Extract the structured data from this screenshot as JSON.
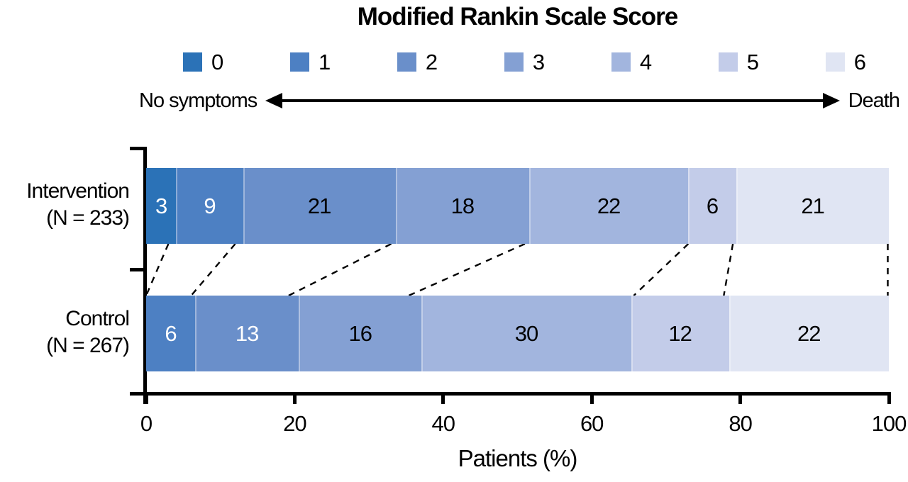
{
  "figure_title": "Modified Rankin Scale Score",
  "chart_data": {
    "type": "bar",
    "orientation": "horizontal",
    "stacked": true,
    "title": "Modified Rankin Scale Score",
    "xlabel": "Patients (%)",
    "xlim": [
      0,
      100
    ],
    "x_ticks": [
      "0",
      "20",
      "40",
      "60",
      "80",
      "100"
    ],
    "grid": false,
    "legend": {
      "position": "top",
      "entries": [
        {
          "label": "0",
          "color": "#2b72b7"
        },
        {
          "label": "1",
          "color": "#4d80c3"
        },
        {
          "label": "2",
          "color": "#6a8fca"
        },
        {
          "label": "3",
          "color": "#84a0d3"
        },
        {
          "label": "4",
          "color": "#a2b5de"
        },
        {
          "label": "5",
          "color": "#c3cce9"
        },
        {
          "label": "6",
          "color": "#e0e5f3"
        }
      ]
    },
    "scale_arrow": {
      "left_label": "No symptoms",
      "right_label": "Death"
    },
    "categories": [
      {
        "name": "Intervention",
        "n_label": "(N = 233)"
      },
      {
        "name": "Control",
        "n_label": "(N = 267)"
      }
    ],
    "series": [
      {
        "category": "Intervention",
        "segments": [
          {
            "score": 0,
            "value": 3,
            "color": "#2b72b7",
            "text_color": "#ffffff"
          },
          {
            "score": 1,
            "value": 9,
            "color": "#4d80c3",
            "text_color": "#ffffff"
          },
          {
            "score": 2,
            "value": 21,
            "color": "#6a8fca",
            "text_color": "#000000"
          },
          {
            "score": 3,
            "value": 18,
            "color": "#84a0d3",
            "text_color": "#000000"
          },
          {
            "score": 4,
            "value": 22,
            "color": "#a2b5de",
            "text_color": "#000000"
          },
          {
            "score": 5,
            "value": 6,
            "color": "#c3cce9",
            "text_color": "#000000"
          },
          {
            "score": 6,
            "value": 21,
            "color": "#e0e5f3",
            "text_color": "#000000"
          }
        ]
      },
      {
        "category": "Control",
        "segments": [
          {
            "score": 1,
            "value": 6,
            "color": "#4d80c3",
            "text_color": "#ffffff"
          },
          {
            "score": 2,
            "value": 13,
            "color": "#6a8fca",
            "text_color": "#ffffff"
          },
          {
            "score": 3,
            "value": 16,
            "color": "#84a0d3",
            "text_color": "#000000"
          },
          {
            "score": 4,
            "value": 30,
            "color": "#a2b5de",
            "text_color": "#000000"
          },
          {
            "score": 5,
            "value": 12,
            "color": "#c3cce9",
            "text_color": "#000000"
          },
          {
            "score": 6,
            "value": 22,
            "color": "#e0e5f3",
            "text_color": "#000000"
          }
        ]
      }
    ],
    "dashed_connectors_between_bars": true
  }
}
